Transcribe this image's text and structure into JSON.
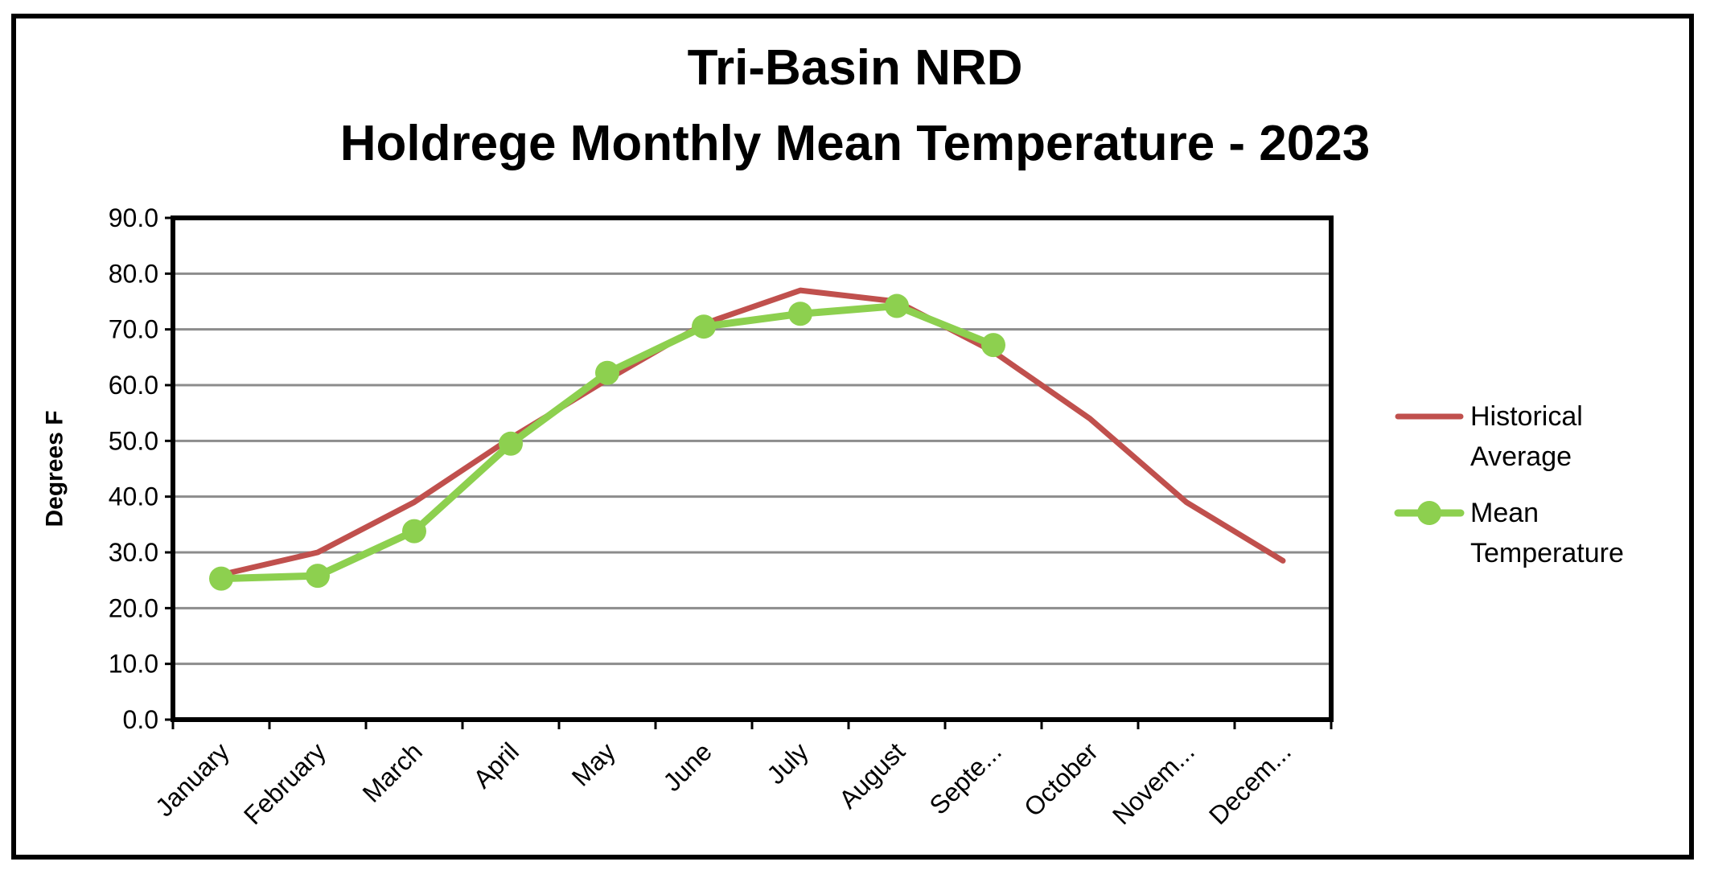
{
  "chart_data": {
    "type": "line",
    "title": [
      "Tri-Basin NRD",
      "Holdrege Monthly Mean Temperature - 2023"
    ],
    "xlabel": "",
    "ylabel": "Degrees F",
    "ylim": [
      0,
      90
    ],
    "yticks": [
      "0.0",
      "10.0",
      "20.0",
      "30.0",
      "40.0",
      "50.0",
      "60.0",
      "70.0",
      "80.0",
      "90.0"
    ],
    "categories": [
      "January",
      "February",
      "March",
      "April",
      "May",
      "June",
      "July",
      "August",
      "Septe...",
      "October",
      "Novem...",
      "Decem..."
    ],
    "grid": true,
    "legend_position": "right",
    "series": [
      {
        "name": "Historical Average",
        "legend_lines": [
          "Historical",
          "Average"
        ],
        "color": "#c0504d",
        "marker": "none",
        "values": [
          26.0,
          30.0,
          39.0,
          50.5,
          61.0,
          71.0,
          77.0,
          75.0,
          66.0,
          54.0,
          39.0,
          28.5
        ]
      },
      {
        "name": "Mean Temperature",
        "legend_lines": [
          "Mean",
          "Temperature"
        ],
        "color": "#8dd04f",
        "marker": "circle",
        "values": [
          25.3,
          25.8,
          33.8,
          49.5,
          62.2,
          70.5,
          72.8,
          74.2,
          67.2,
          null,
          null,
          null
        ]
      }
    ]
  }
}
